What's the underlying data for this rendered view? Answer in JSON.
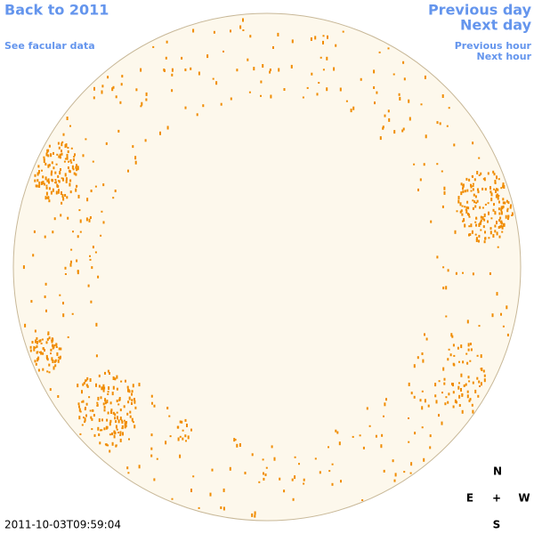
{
  "links": {
    "back_year": "Back to 2011",
    "facular_data": "See facular data",
    "previous_day": "Previous day",
    "next_day": "Next day",
    "previous_hour": "Previous hour",
    "next_hour": "Next hour"
  },
  "compass": {
    "north": "N",
    "east": "E",
    "center": "+",
    "west": "W",
    "south": "S"
  },
  "timestamp": "2011-10-03T09:59:04"
}
